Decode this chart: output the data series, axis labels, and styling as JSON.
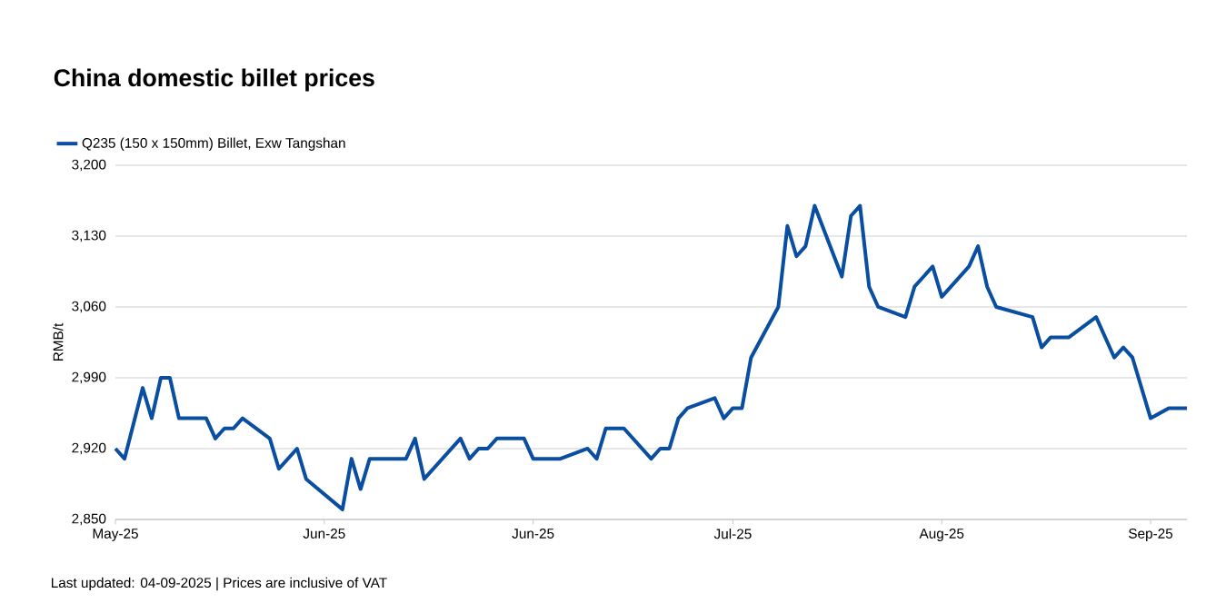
{
  "chart_data": {
    "type": "line",
    "title": "China domestic billet prices",
    "ylabel": "RMB/t",
    "annotations": [
      "Last updated: 04-09-2025 | Prices are inclusive of VAT"
    ],
    "categories": [
      "May-25",
      null,
      null,
      null,
      null,
      null,
      null,
      null,
      null,
      null,
      null,
      null,
      null,
      null,
      null,
      null,
      null,
      null,
      null,
      null,
      null,
      null,
      null,
      "Jun-25",
      null,
      null,
      null,
      null,
      null,
      null,
      null,
      null,
      null,
      null,
      null,
      null,
      null,
      null,
      null,
      null,
      null,
      null,
      null,
      null,
      null,
      null,
      "Jun-25",
      null,
      null,
      null,
      null,
      null,
      null,
      null,
      null,
      null,
      null,
      null,
      null,
      null,
      null,
      null,
      null,
      null,
      null,
      null,
      null,
      null,
      "Jul-25",
      null,
      null,
      null,
      null,
      null,
      null,
      null,
      null,
      null,
      null,
      null,
      null,
      null,
      null,
      null,
      null,
      null,
      null,
      null,
      null,
      null,
      null,
      "Aug-25",
      null,
      null,
      null,
      null,
      null,
      null,
      null,
      null,
      null,
      null,
      null,
      null,
      null,
      null,
      null,
      null,
      null,
      null,
      null,
      null,
      null,
      null,
      "Sep-25",
      null,
      null,
      null,
      null
    ],
    "series": [
      {
        "name": "Q235 (150 x 150mm) Billet, Exw Tangshan",
        "color": "#0a4ea2",
        "values": [
          2920,
          2910,
          null,
          2980,
          2950,
          2990,
          2990,
          2950,
          null,
          null,
          2950,
          2930,
          2940,
          2940,
          2950,
          null,
          null,
          2930,
          2900,
          null,
          2920,
          2890,
          null,
          null,
          null,
          2860,
          2910,
          2880,
          2910,
          null,
          null,
          null,
          2910,
          2930,
          2890,
          null,
          null,
          null,
          2930,
          2910,
          2920,
          2920,
          2930,
          null,
          null,
          2930,
          2910,
          null,
          null,
          2910,
          null,
          null,
          2920,
          2910,
          2940,
          null,
          2940,
          null,
          null,
          2910,
          2920,
          2920,
          2950,
          2960,
          null,
          null,
          2970,
          2950,
          2960,
          2960,
          3010,
          null,
          null,
          3060,
          3140,
          3110,
          3120,
          3160,
          null,
          null,
          3090,
          3150,
          3160,
          3080,
          3060,
          null,
          null,
          3050,
          3080,
          null,
          3100,
          3070,
          null,
          null,
          3100,
          3120,
          3080,
          3060,
          null,
          null,
          null,
          3050,
          3020,
          3030,
          null,
          3030,
          null,
          null,
          3050,
          null,
          3010,
          3020,
          3010,
          null,
          2950,
          null,
          2960,
          null,
          2960
        ]
      }
    ],
    "ylim": [
      2850,
      3200
    ],
    "yticks": [
      {
        "value": 2850,
        "label": "2,850"
      },
      {
        "value": 2920,
        "label": "2,920"
      },
      {
        "value": 2990,
        "label": "2,990"
      },
      {
        "value": 3060,
        "label": "3,060"
      },
      {
        "value": 3130,
        "label": "3,130"
      },
      {
        "value": 3200,
        "label": "3,200"
      }
    ],
    "grid": "y",
    "legend": "top left",
    "marker": "none",
    "line_style": "solid"
  }
}
